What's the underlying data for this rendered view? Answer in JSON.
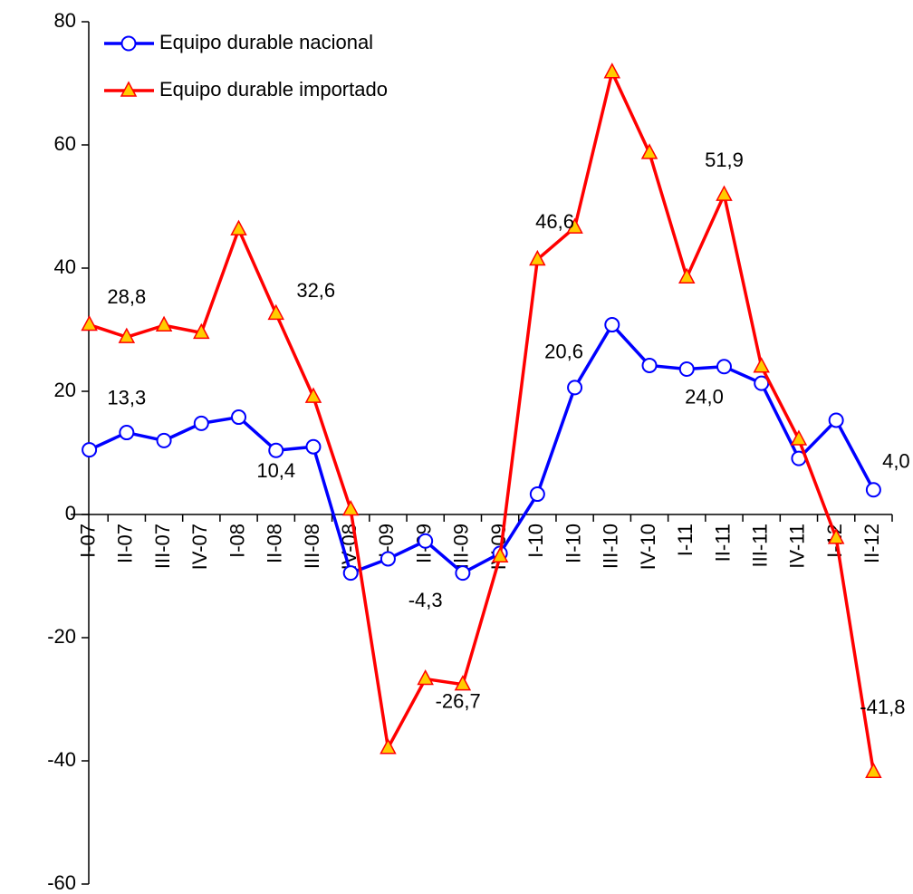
{
  "chart_data": {
    "type": "line",
    "categories": [
      "I-07",
      "II-07",
      "III-07",
      "IV-07",
      "I-08",
      "II-08",
      "III-08",
      "IV-08",
      "I-09",
      "II-09",
      "III-09",
      "IV-09",
      "I-10",
      "II-10",
      "III-10",
      "IV-10",
      "I-11",
      "II-11",
      "III-11",
      "IV-11",
      "I-12",
      "II-12"
    ],
    "series": [
      {
        "name": "Equipo durable nacional",
        "color": "#0000ff",
        "marker": "circle",
        "values": [
          10.5,
          13.3,
          12.0,
          14.8,
          15.8,
          10.4,
          11.0,
          -9.5,
          -7.2,
          -4.3,
          -9.5,
          -6.3,
          3.3,
          20.6,
          30.8,
          24.2,
          23.6,
          24.0,
          21.3,
          9.1,
          15.3,
          4.0
        ],
        "value_labels": [
          null,
          "13,3",
          null,
          null,
          null,
          "10,4",
          null,
          null,
          null,
          "-4,3",
          null,
          null,
          null,
          "20,6",
          null,
          null,
          null,
          "24,0",
          null,
          null,
          null,
          "4,0"
        ]
      },
      {
        "name": "Equipo durable importado",
        "color": "#ff0000",
        "marker": "triangle",
        "values": [
          30.8,
          28.8,
          30.7,
          29.5,
          46.3,
          32.6,
          19.1,
          0.8,
          -37.9,
          -26.7,
          -27.6,
          -6.8,
          41.4,
          46.6,
          71.8,
          58.7,
          38.5,
          51.9,
          24.0,
          12.2,
          -3.8,
          -41.8
        ],
        "value_labels": [
          null,
          "28,8",
          null,
          null,
          null,
          "32,6",
          null,
          null,
          null,
          "-26,7",
          null,
          null,
          null,
          "46,6",
          null,
          null,
          null,
          "51,9",
          null,
          null,
          null,
          "-41,8"
        ]
      }
    ],
    "ylim": [
      -60,
      80
    ],
    "yticks": [
      -60,
      -40,
      -20,
      0,
      20,
      40,
      60,
      80
    ],
    "grid": false,
    "legend": "top-left"
  }
}
